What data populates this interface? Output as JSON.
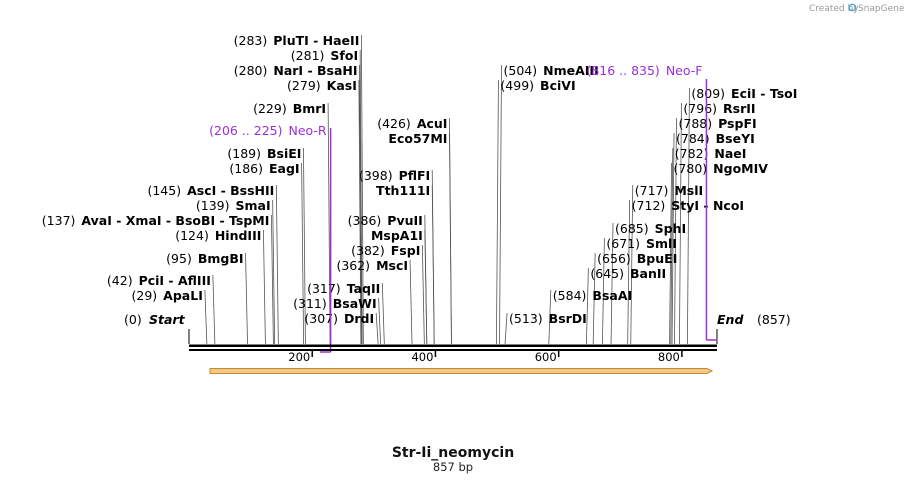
{
  "credit": {
    "prefix": "Created by",
    "brand": "SnapGene"
  },
  "title": "Str-Ii_neomycin",
  "length_label": "857 bp",
  "sequence_length": 857,
  "start": {
    "pos": "(0)",
    "label": "Start"
  },
  "end": {
    "pos": "(857)",
    "label": "End"
  },
  "ticks": [
    200,
    400,
    600,
    800
  ],
  "colors": {
    "primer": "#9b30d6",
    "feature_fill": "#f5c98a",
    "feature_stroke": "#c98a2e"
  },
  "sites": [
    {
      "pos": 29,
      "row": 296,
      "num": "(29)",
      "names": [
        "ApaLI"
      ]
    },
    {
      "pos": 42,
      "row": 281,
      "num": "(42)",
      "names": [
        "PciI",
        "AflIII"
      ]
    },
    {
      "pos": 95,
      "row": 259,
      "num": "(95)",
      "names": [
        "BmgBI"
      ]
    },
    {
      "pos": 124,
      "row": 236,
      "num": "(124)",
      "names": [
        "HindIII"
      ]
    },
    {
      "pos": 137,
      "row": 221,
      "num": "(137)",
      "names": [
        "AvaI",
        "XmaI",
        "BsoBI",
        "TspMI"
      ]
    },
    {
      "pos": 139,
      "row": 206,
      "num": "(139)",
      "names": [
        "SmaI"
      ]
    },
    {
      "pos": 145,
      "row": 191,
      "num": "(145)",
      "names": [
        "AscI",
        "BssHII"
      ]
    },
    {
      "pos": 186,
      "row": 169,
      "num": "(186)",
      "names": [
        "EagI"
      ]
    },
    {
      "pos": 189,
      "row": 154,
      "num": "(189)",
      "names": [
        "BsiEI"
      ]
    },
    {
      "pos": 229,
      "row": 109,
      "num": "(229)",
      "names": [
        "BmrI"
      ]
    },
    {
      "pos": 279,
      "row": 86,
      "num": "(279)",
      "names": [
        "KasI"
      ]
    },
    {
      "pos": 280,
      "row": 71,
      "num": "(280)",
      "names": [
        "NarI",
        "BsaHI"
      ]
    },
    {
      "pos": 281,
      "row": 56,
      "num": "(281)",
      "names": [
        "SfoI"
      ]
    },
    {
      "pos": 283,
      "row": 41,
      "num": "(283)",
      "names": [
        "PluTI",
        "HaeII"
      ]
    },
    {
      "pos": 307,
      "row": 319,
      "num": "(307)",
      "names": [
        "DrdI"
      ]
    },
    {
      "pos": 311,
      "row": 304,
      "num": "(311)",
      "names": [
        "BsaWI"
      ]
    },
    {
      "pos": 317,
      "row": 289,
      "num": "(317)",
      "names": [
        "TaqII"
      ]
    },
    {
      "pos": 362,
      "row": 266,
      "num": "(362)",
      "names": [
        "MscI"
      ]
    },
    {
      "pos": 382,
      "row": 251,
      "num": "(382)",
      "names": [
        "FspI"
      ]
    },
    {
      "pos": 386,
      "row": 221,
      "num": "(386)",
      "names": [
        "PvuII"
      ]
    },
    {
      "pos": 386,
      "row": 236,
      "num": "",
      "names": [
        "MspA1I"
      ]
    },
    {
      "pos": 398,
      "row": 176,
      "num": "(398)",
      "names": [
        "PflFI"
      ]
    },
    {
      "pos": 398,
      "row": 191,
      "num": "",
      "names": [
        "Tth111I"
      ]
    },
    {
      "pos": 426,
      "row": 124,
      "num": "(426)",
      "names": [
        "AcuI"
      ]
    },
    {
      "pos": 426,
      "row": 139,
      "num": "",
      "names": [
        "Eco57MI"
      ]
    },
    {
      "pos": 499,
      "row": 86,
      "num": "(499)",
      "names": [
        "BciVI"
      ]
    },
    {
      "pos": 504,
      "row": 71,
      "num": "(504)",
      "names": [
        "NmeAIII"
      ]
    },
    {
      "pos": 513,
      "row": 319,
      "num": "(513)",
      "names": [
        "BsrDI"
      ]
    },
    {
      "pos": 584,
      "row": 296,
      "num": "(584)",
      "names": [
        "BsaAI"
      ]
    },
    {
      "pos": 645,
      "row": 274,
      "num": "(645)",
      "names": [
        "BanII"
      ]
    },
    {
      "pos": 656,
      "row": 259,
      "num": "(656)",
      "names": [
        "BpuEI"
      ]
    },
    {
      "pos": 671,
      "row": 244,
      "num": "(671)",
      "names": [
        "SmlI"
      ]
    },
    {
      "pos": 685,
      "row": 229,
      "num": "(685)",
      "names": [
        "SphI"
      ]
    },
    {
      "pos": 712,
      "row": 206,
      "num": "(712)",
      "names": [
        "StyI",
        "NcoI"
      ]
    },
    {
      "pos": 717,
      "row": 191,
      "num": "(717)",
      "names": [
        "MslI"
      ]
    },
    {
      "pos": 780,
      "row": 169,
      "num": "(780)",
      "names": [
        "NgoMIV"
      ]
    },
    {
      "pos": 782,
      "row": 154,
      "num": "(782)",
      "names": [
        "NaeI"
      ]
    },
    {
      "pos": 784,
      "row": 139,
      "num": "(784)",
      "names": [
        "BseYI"
      ]
    },
    {
      "pos": 788,
      "row": 124,
      "num": "(788)",
      "names": [
        "PspFI"
      ]
    },
    {
      "pos": 796,
      "row": 109,
      "num": "(796)",
      "names": [
        "RsrII"
      ]
    },
    {
      "pos": 809,
      "row": 94,
      "num": "(809)",
      "names": [
        "EciI",
        "TsoI"
      ]
    }
  ],
  "primers": [
    {
      "label": "Neo-R",
      "range": "(206 .. 225)",
      "start": 206,
      "end": 225,
      "direction": "reverse",
      "row": 131
    },
    {
      "label": "Neo-F",
      "range": "(816 .. 835)",
      "start": 816,
      "end": 835,
      "direction": "forward",
      "row": 71
    }
  ]
}
